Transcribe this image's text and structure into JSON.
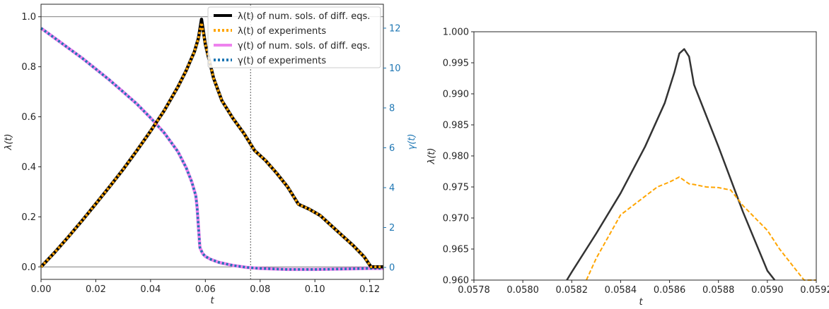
{
  "chart_data": [
    {
      "type": "line",
      "xlabel": "t",
      "ylabel": "λ(t)",
      "y2label": "γ(t)",
      "xlim": [
        0,
        0.125
      ],
      "ylim": [
        -0.05,
        1.05
      ],
      "y2lim": [
        -0.6,
        13.2
      ],
      "xticks": [
        "0.00",
        "0.02",
        "0.04",
        "0.06",
        "0.08",
        "0.10",
        "0.12"
      ],
      "yticks": [
        "0.0",
        "0.2",
        "0.4",
        "0.6",
        "0.8",
        "1.0"
      ],
      "y2ticks": [
        "0",
        "2",
        "4",
        "6",
        "8",
        "10",
        "12"
      ],
      "hlines": [
        0,
        1
      ],
      "vline": 0.0765,
      "legend_position": "top-right",
      "colors": {
        "num_lambda": "#000000",
        "exp_lambda": "#ffa500",
        "num_gamma": "#ee82ee",
        "exp_gamma": "#1f77b4",
        "right_axis": "#1f77b4"
      },
      "series": [
        {
          "name": "λ(t) of num. sols. of diff. eqs.",
          "axis": "left",
          "x": [
            0,
            0.005,
            0.01,
            0.015,
            0.02,
            0.025,
            0.03,
            0.035,
            0.04,
            0.045,
            0.05,
            0.053,
            0.056,
            0.0575,
            0.0586,
            0.06,
            0.063,
            0.066,
            0.07,
            0.074,
            0.078,
            0.082,
            0.086,
            0.09,
            0.094,
            0.098,
            0.102,
            0.106,
            0.11,
            0.114,
            0.118,
            0.1205,
            0.125
          ],
          "y": [
            0,
            0.058,
            0.12,
            0.185,
            0.252,
            0.32,
            0.39,
            0.465,
            0.543,
            0.625,
            0.72,
            0.785,
            0.86,
            0.915,
            0.99,
            0.89,
            0.755,
            0.665,
            0.595,
            0.535,
            0.465,
            0.425,
            0.375,
            0.32,
            0.25,
            0.23,
            0.205,
            0.165,
            0.125,
            0.085,
            0.04,
            0,
            0
          ]
        },
        {
          "name": "λ(t) of experiments",
          "axis": "left",
          "x": [
            0,
            0.005,
            0.01,
            0.015,
            0.02,
            0.025,
            0.03,
            0.035,
            0.04,
            0.045,
            0.05,
            0.053,
            0.056,
            0.0575,
            0.0586,
            0.06,
            0.063,
            0.066,
            0.07,
            0.074,
            0.078,
            0.082,
            0.086,
            0.09,
            0.094,
            0.098,
            0.102,
            0.106,
            0.11,
            0.114,
            0.118,
            0.1205,
            0.125
          ],
          "y": [
            0,
            0.058,
            0.12,
            0.185,
            0.252,
            0.32,
            0.39,
            0.465,
            0.543,
            0.625,
            0.72,
            0.785,
            0.86,
            0.915,
            0.976,
            0.89,
            0.755,
            0.665,
            0.595,
            0.535,
            0.465,
            0.425,
            0.375,
            0.32,
            0.25,
            0.23,
            0.205,
            0.165,
            0.125,
            0.085,
            0.04,
            0,
            0
          ]
        },
        {
          "name": "γ(t) of num. sols. of diff. eqs.",
          "axis": "right",
          "x": [
            0,
            0.005,
            0.01,
            0.015,
            0.02,
            0.025,
            0.03,
            0.035,
            0.04,
            0.045,
            0.05,
            0.053,
            0.055,
            0.0565,
            0.057,
            0.0575,
            0.058,
            0.059,
            0.06,
            0.062,
            0.065,
            0.07,
            0.075,
            0.08,
            0.09,
            0.1,
            0.11,
            0.12,
            0.125
          ],
          "y": [
            12.0,
            11.5,
            11.0,
            10.5,
            9.95,
            9.4,
            8.8,
            8.2,
            7.5,
            6.75,
            5.8,
            5.0,
            4.3,
            3.6,
            3.0,
            2.0,
            1.0,
            0.7,
            0.55,
            0.4,
            0.25,
            0.1,
            0.0,
            -0.05,
            -0.1,
            -0.1,
            -0.08,
            -0.05,
            -0.05
          ]
        },
        {
          "name": "γ(t) of experiments",
          "axis": "right",
          "x": [
            0,
            0.005,
            0.01,
            0.015,
            0.02,
            0.025,
            0.03,
            0.035,
            0.04,
            0.045,
            0.05,
            0.053,
            0.055,
            0.0565,
            0.057,
            0.0575,
            0.058,
            0.059,
            0.06,
            0.062,
            0.065,
            0.07,
            0.075,
            0.08,
            0.09,
            0.1,
            0.11,
            0.12,
            0.125
          ],
          "y": [
            12.0,
            11.5,
            11.0,
            10.5,
            9.95,
            9.4,
            8.8,
            8.2,
            7.5,
            6.75,
            5.8,
            5.0,
            4.3,
            3.6,
            3.0,
            2.0,
            1.0,
            0.7,
            0.55,
            0.4,
            0.25,
            0.1,
            0.0,
            -0.05,
            -0.1,
            -0.1,
            -0.08,
            -0.05,
            -0.05
          ]
        }
      ]
    },
    {
      "type": "line",
      "xlabel": "t",
      "ylabel": "λ(t)",
      "xlim": [
        0.0578,
        0.0592
      ],
      "ylim": [
        0.96,
        1.0
      ],
      "xticks": [
        "0.0578",
        "0.0580",
        "0.0582",
        "0.0584",
        "0.0586",
        "0.0588",
        "0.0590",
        "0.0592"
      ],
      "yticks": [
        "0.960",
        "0.965",
        "0.970",
        "0.975",
        "0.980",
        "0.985",
        "0.990",
        "0.995",
        "1.000"
      ],
      "colors": {
        "num": "#333333",
        "exp": "#ffa500"
      },
      "series": [
        {
          "axis": "left",
          "x": [
            0.05818,
            0.0582,
            0.0583,
            0.0584,
            0.0585,
            0.05858,
            0.05862,
            0.05864,
            0.05866,
            0.05868,
            0.0587,
            0.0588,
            0.0589,
            0.059,
            0.05903
          ],
          "y": [
            0.96,
            0.9613,
            0.9675,
            0.974,
            0.9815,
            0.9885,
            0.9935,
            0.9965,
            0.9972,
            0.996,
            0.9915,
            0.9815,
            0.971,
            0.9615,
            0.96
          ]
        },
        {
          "axis": "left",
          "x": [
            0.05826,
            0.0583,
            0.05835,
            0.0584,
            0.05845,
            0.0585,
            0.05855,
            0.0586,
            0.05864,
            0.05868,
            0.0587,
            0.05875,
            0.0588,
            0.05885,
            0.0589,
            0.05895,
            0.059,
            0.05905,
            0.0591,
            0.05915,
            0.0592
          ],
          "y": [
            0.96,
            0.9635,
            0.967,
            0.9705,
            0.972,
            0.9735,
            0.975,
            0.9758,
            0.9766,
            0.9755,
            0.9754,
            0.975,
            0.9749,
            0.9745,
            0.972,
            0.97,
            0.968,
            0.965,
            0.9625,
            0.96,
            0.96
          ]
        }
      ]
    }
  ]
}
